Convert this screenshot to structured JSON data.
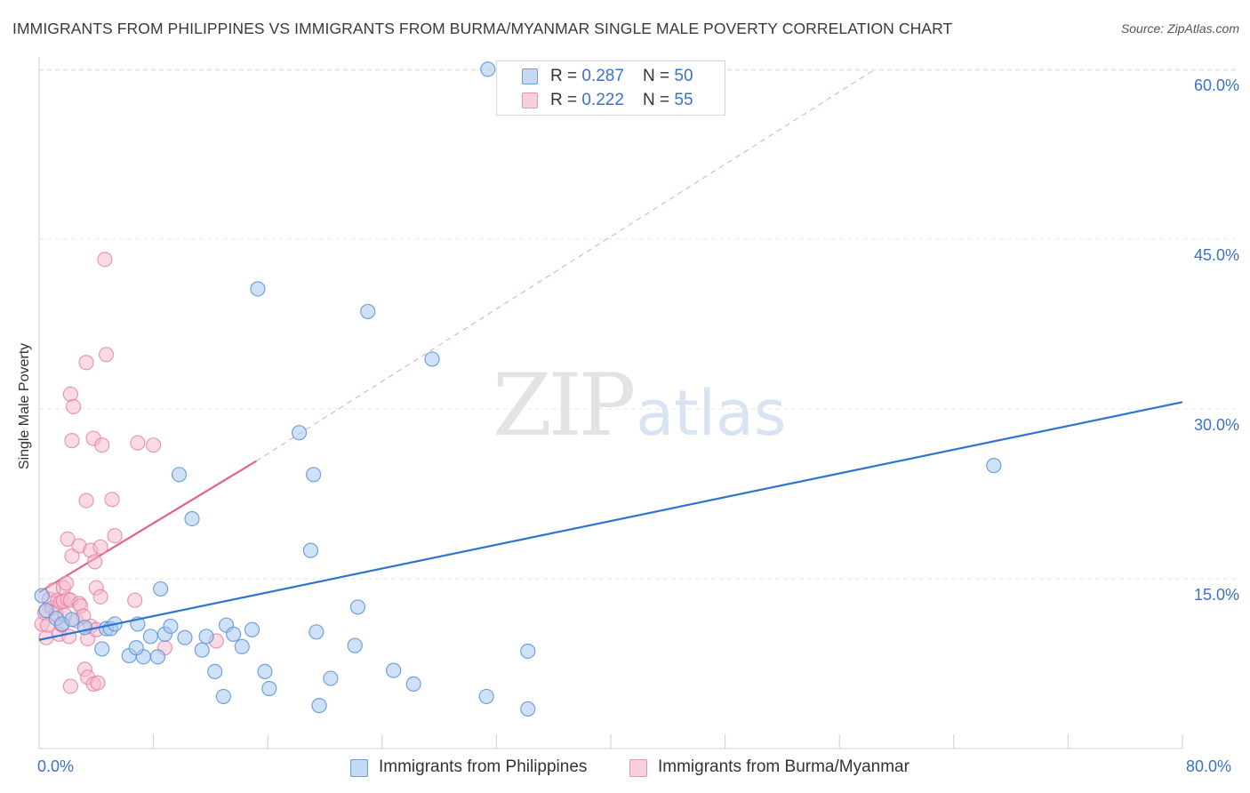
{
  "header": {
    "title": "IMMIGRANTS FROM PHILIPPINES VS IMMIGRANTS FROM BURMA/MYANMAR SINGLE MALE POVERTY CORRELATION CHART",
    "source": "Source: ZipAtlas.com"
  },
  "watermark": {
    "zip": "ZIP",
    "atlas": "atlas"
  },
  "legend_top": {
    "rows": [
      {
        "r_label": "R = ",
        "r_value": "0.287",
        "n_label": "N = ",
        "n_value": "50"
      },
      {
        "r_label": "R = ",
        "r_value": "0.222",
        "n_label": "N = ",
        "n_value": "55"
      }
    ]
  },
  "colors": {
    "blue_fill": "#a8c8f0",
    "blue_stroke": "#5b93d6",
    "blue_line": "#2f74d0",
    "pink_fill": "#f5b7cb",
    "pink_stroke": "#e77fa2",
    "pink_line": "#e0648c",
    "tick_text": "#3a73c9",
    "grid": "#e6e6e6"
  },
  "chart_data": {
    "type": "scatter",
    "title": "IMMIGRANTS FROM PHILIPPINES VS IMMIGRANTS FROM BURMA/MYANMAR SINGLE MALE POVERTY CORRELATION CHART",
    "xlabel": "",
    "ylabel": "Single Male Poverty",
    "xlim": [
      0,
      80
    ],
    "ylim": [
      0,
      64
    ],
    "x_tick_labels": [
      "0.0%",
      "80.0%"
    ],
    "y_ticks": [
      15,
      30,
      45,
      60
    ],
    "y_tick_labels": [
      "15.0%",
      "30.0%",
      "45.0%",
      "60.0%"
    ],
    "grid": true,
    "legend_position": "bottom",
    "series": [
      {
        "name": "Immigrants from Philippines",
        "color": "#5b93d6",
        "R": 0.287,
        "N": 50,
        "trendline": {
          "x": [
            0,
            80
          ],
          "y": [
            9.6,
            30.6
          ],
          "style": "solid"
        },
        "points": [
          [
            0.2,
            13.5
          ],
          [
            0.5,
            12.2
          ],
          [
            1.2,
            11.5
          ],
          [
            1.6,
            11.0
          ],
          [
            2.3,
            11.4
          ],
          [
            3.2,
            10.7
          ],
          [
            4.4,
            8.8
          ],
          [
            4.7,
            10.6
          ],
          [
            5.0,
            10.6
          ],
          [
            5.3,
            11.0
          ],
          [
            6.3,
            8.2
          ],
          [
            7.3,
            8.1
          ],
          [
            6.8,
            8.9
          ],
          [
            6.9,
            11.0
          ],
          [
            7.8,
            9.9
          ],
          [
            8.3,
            8.1
          ],
          [
            8.5,
            14.1
          ],
          [
            8.8,
            10.1
          ],
          [
            9.2,
            10.8
          ],
          [
            9.8,
            24.2
          ],
          [
            10.2,
            9.8
          ],
          [
            10.7,
            20.3
          ],
          [
            11.4,
            8.7
          ],
          [
            11.7,
            9.9
          ],
          [
            12.3,
            6.8
          ],
          [
            12.9,
            4.6
          ],
          [
            13.1,
            10.9
          ],
          [
            13.6,
            10.1
          ],
          [
            14.2,
            9.0
          ],
          [
            14.9,
            10.5
          ],
          [
            15.3,
            40.6
          ],
          [
            15.8,
            6.8
          ],
          [
            16.1,
            5.3
          ],
          [
            18.2,
            27.9
          ],
          [
            19.2,
            24.2
          ],
          [
            19.0,
            17.5
          ],
          [
            19.4,
            10.3
          ],
          [
            19.6,
            3.8
          ],
          [
            20.4,
            6.2
          ],
          [
            22.1,
            9.1
          ],
          [
            22.3,
            12.5
          ],
          [
            23.0,
            38.6
          ],
          [
            24.8,
            6.9
          ],
          [
            26.2,
            5.7
          ],
          [
            27.5,
            34.4
          ],
          [
            31.3,
            4.6
          ],
          [
            31.4,
            60.0
          ],
          [
            34.2,
            3.5
          ],
          [
            34.2,
            8.6
          ],
          [
            66.8,
            25.0
          ]
        ]
      },
      {
        "name": "Immigrants from Burma/Myanmar",
        "color": "#e77fa2",
        "R": 0.222,
        "N": 55,
        "trendline": {
          "x": [
            0,
            15.2
          ],
          "y": [
            13.8,
            25.4
          ],
          "style": "solid",
          "extended_to": [
            58.5,
            60.0
          ],
          "extended_style": "dashed"
        },
        "points": [
          [
            0.2,
            11.0
          ],
          [
            0.4,
            12.0
          ],
          [
            0.5,
            9.8
          ],
          [
            0.6,
            10.9
          ],
          [
            0.7,
            13.2
          ],
          [
            0.9,
            12.4
          ],
          [
            1.0,
            14.0
          ],
          [
            1.2,
            11.9
          ],
          [
            1.3,
            13.1
          ],
          [
            1.4,
            10.1
          ],
          [
            1.5,
            12.9
          ],
          [
            1.6,
            10.9
          ],
          [
            1.7,
            14.2
          ],
          [
            1.7,
            13.0
          ],
          [
            1.8,
            11.8
          ],
          [
            1.9,
            14.6
          ],
          [
            2.0,
            13.2
          ],
          [
            2.1,
            9.9
          ],
          [
            2.2,
            13.1
          ],
          [
            2.0,
            18.5
          ],
          [
            2.2,
            5.5
          ],
          [
            2.2,
            31.3
          ],
          [
            2.3,
            17.0
          ],
          [
            2.4,
            30.2
          ],
          [
            2.3,
            27.2
          ],
          [
            2.6,
            11.3
          ],
          [
            2.8,
            12.8
          ],
          [
            2.8,
            17.9
          ],
          [
            2.9,
            12.6
          ],
          [
            3.1,
            11.7
          ],
          [
            3.2,
            7.0
          ],
          [
            3.3,
            34.1
          ],
          [
            3.3,
            21.9
          ],
          [
            3.4,
            6.3
          ],
          [
            3.4,
            9.7
          ],
          [
            3.6,
            17.5
          ],
          [
            3.6,
            10.8
          ],
          [
            3.8,
            5.7
          ],
          [
            3.8,
            27.4
          ],
          [
            3.9,
            16.5
          ],
          [
            4.0,
            10.5
          ],
          [
            4.0,
            14.2
          ],
          [
            4.1,
            5.8
          ],
          [
            4.3,
            17.8
          ],
          [
            4.3,
            13.4
          ],
          [
            4.4,
            26.8
          ],
          [
            4.6,
            43.2
          ],
          [
            4.7,
            34.8
          ],
          [
            5.1,
            22.0
          ],
          [
            5.3,
            18.8
          ],
          [
            6.7,
            13.1
          ],
          [
            6.9,
            27.0
          ],
          [
            8.0,
            26.8
          ],
          [
            8.8,
            8.9
          ],
          [
            12.4,
            9.5
          ]
        ]
      }
    ]
  },
  "legend_bottom": {
    "items": [
      {
        "label": "Immigrants from Philippines"
      },
      {
        "label": "Immigrants from Burma/Myanmar"
      }
    ]
  }
}
